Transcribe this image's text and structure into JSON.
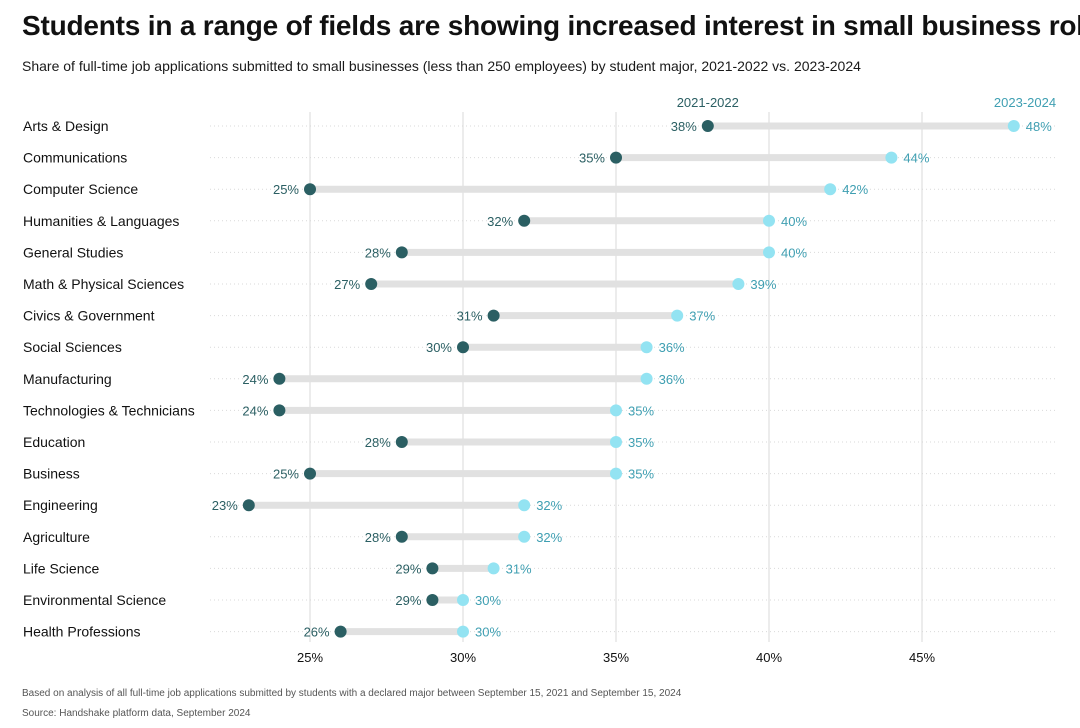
{
  "title": "Students in a range of fields are showing increased interest in small business roles",
  "subtitle": "Share of full-time job applications submitted to small businesses (less than 250 employees) by student major, 2021-2022 vs. 2023-2024",
  "footnote": "Based on analysis of all full-time job applications submitted by students with a declared major between September 15, 2021 and September 15, 2024",
  "source": "Source: Handshake platform data, September 2024",
  "colors": {
    "series_2021": "#2b5f63",
    "series_2023": "#93e3f2",
    "series_2023_label": "#3f9fb2",
    "connector": "#e1e1e1",
    "grid": "#d9d9d9"
  },
  "chart_data": {
    "type": "dumbbell",
    "title": "Students in a range of fields are showing increased interest in small business roles",
    "xlabel": "",
    "ylabel": "",
    "xlim": [
      21,
      49
    ],
    "xticks": [
      25,
      30,
      35,
      40,
      45
    ],
    "xtick_labels": [
      "25%",
      "30%",
      "35%",
      "40%",
      "45%"
    ],
    "categories": [
      "Arts & Design",
      "Communications",
      "Computer Science",
      "Humanities & Languages",
      "General Studies",
      "Math & Physical Sciences",
      "Civics & Government",
      "Social Sciences",
      "Manufacturing",
      "Technologies & Technicians",
      "Education",
      "Business",
      "Engineering",
      "Agriculture",
      "Life Science",
      "Environmental Science",
      "Health Professions"
    ],
    "series": [
      {
        "name": "2021-2022",
        "values": [
          38,
          35,
          25,
          32,
          28,
          27,
          31,
          30,
          24,
          24,
          28,
          25,
          23,
          28,
          29,
          29,
          26
        ]
      },
      {
        "name": "2023-2024",
        "values": [
          48,
          44,
          42,
          40,
          40,
          39,
          37,
          36,
          36,
          35,
          35,
          35,
          32,
          32,
          31,
          30,
          30
        ]
      }
    ],
    "grid": true
  }
}
